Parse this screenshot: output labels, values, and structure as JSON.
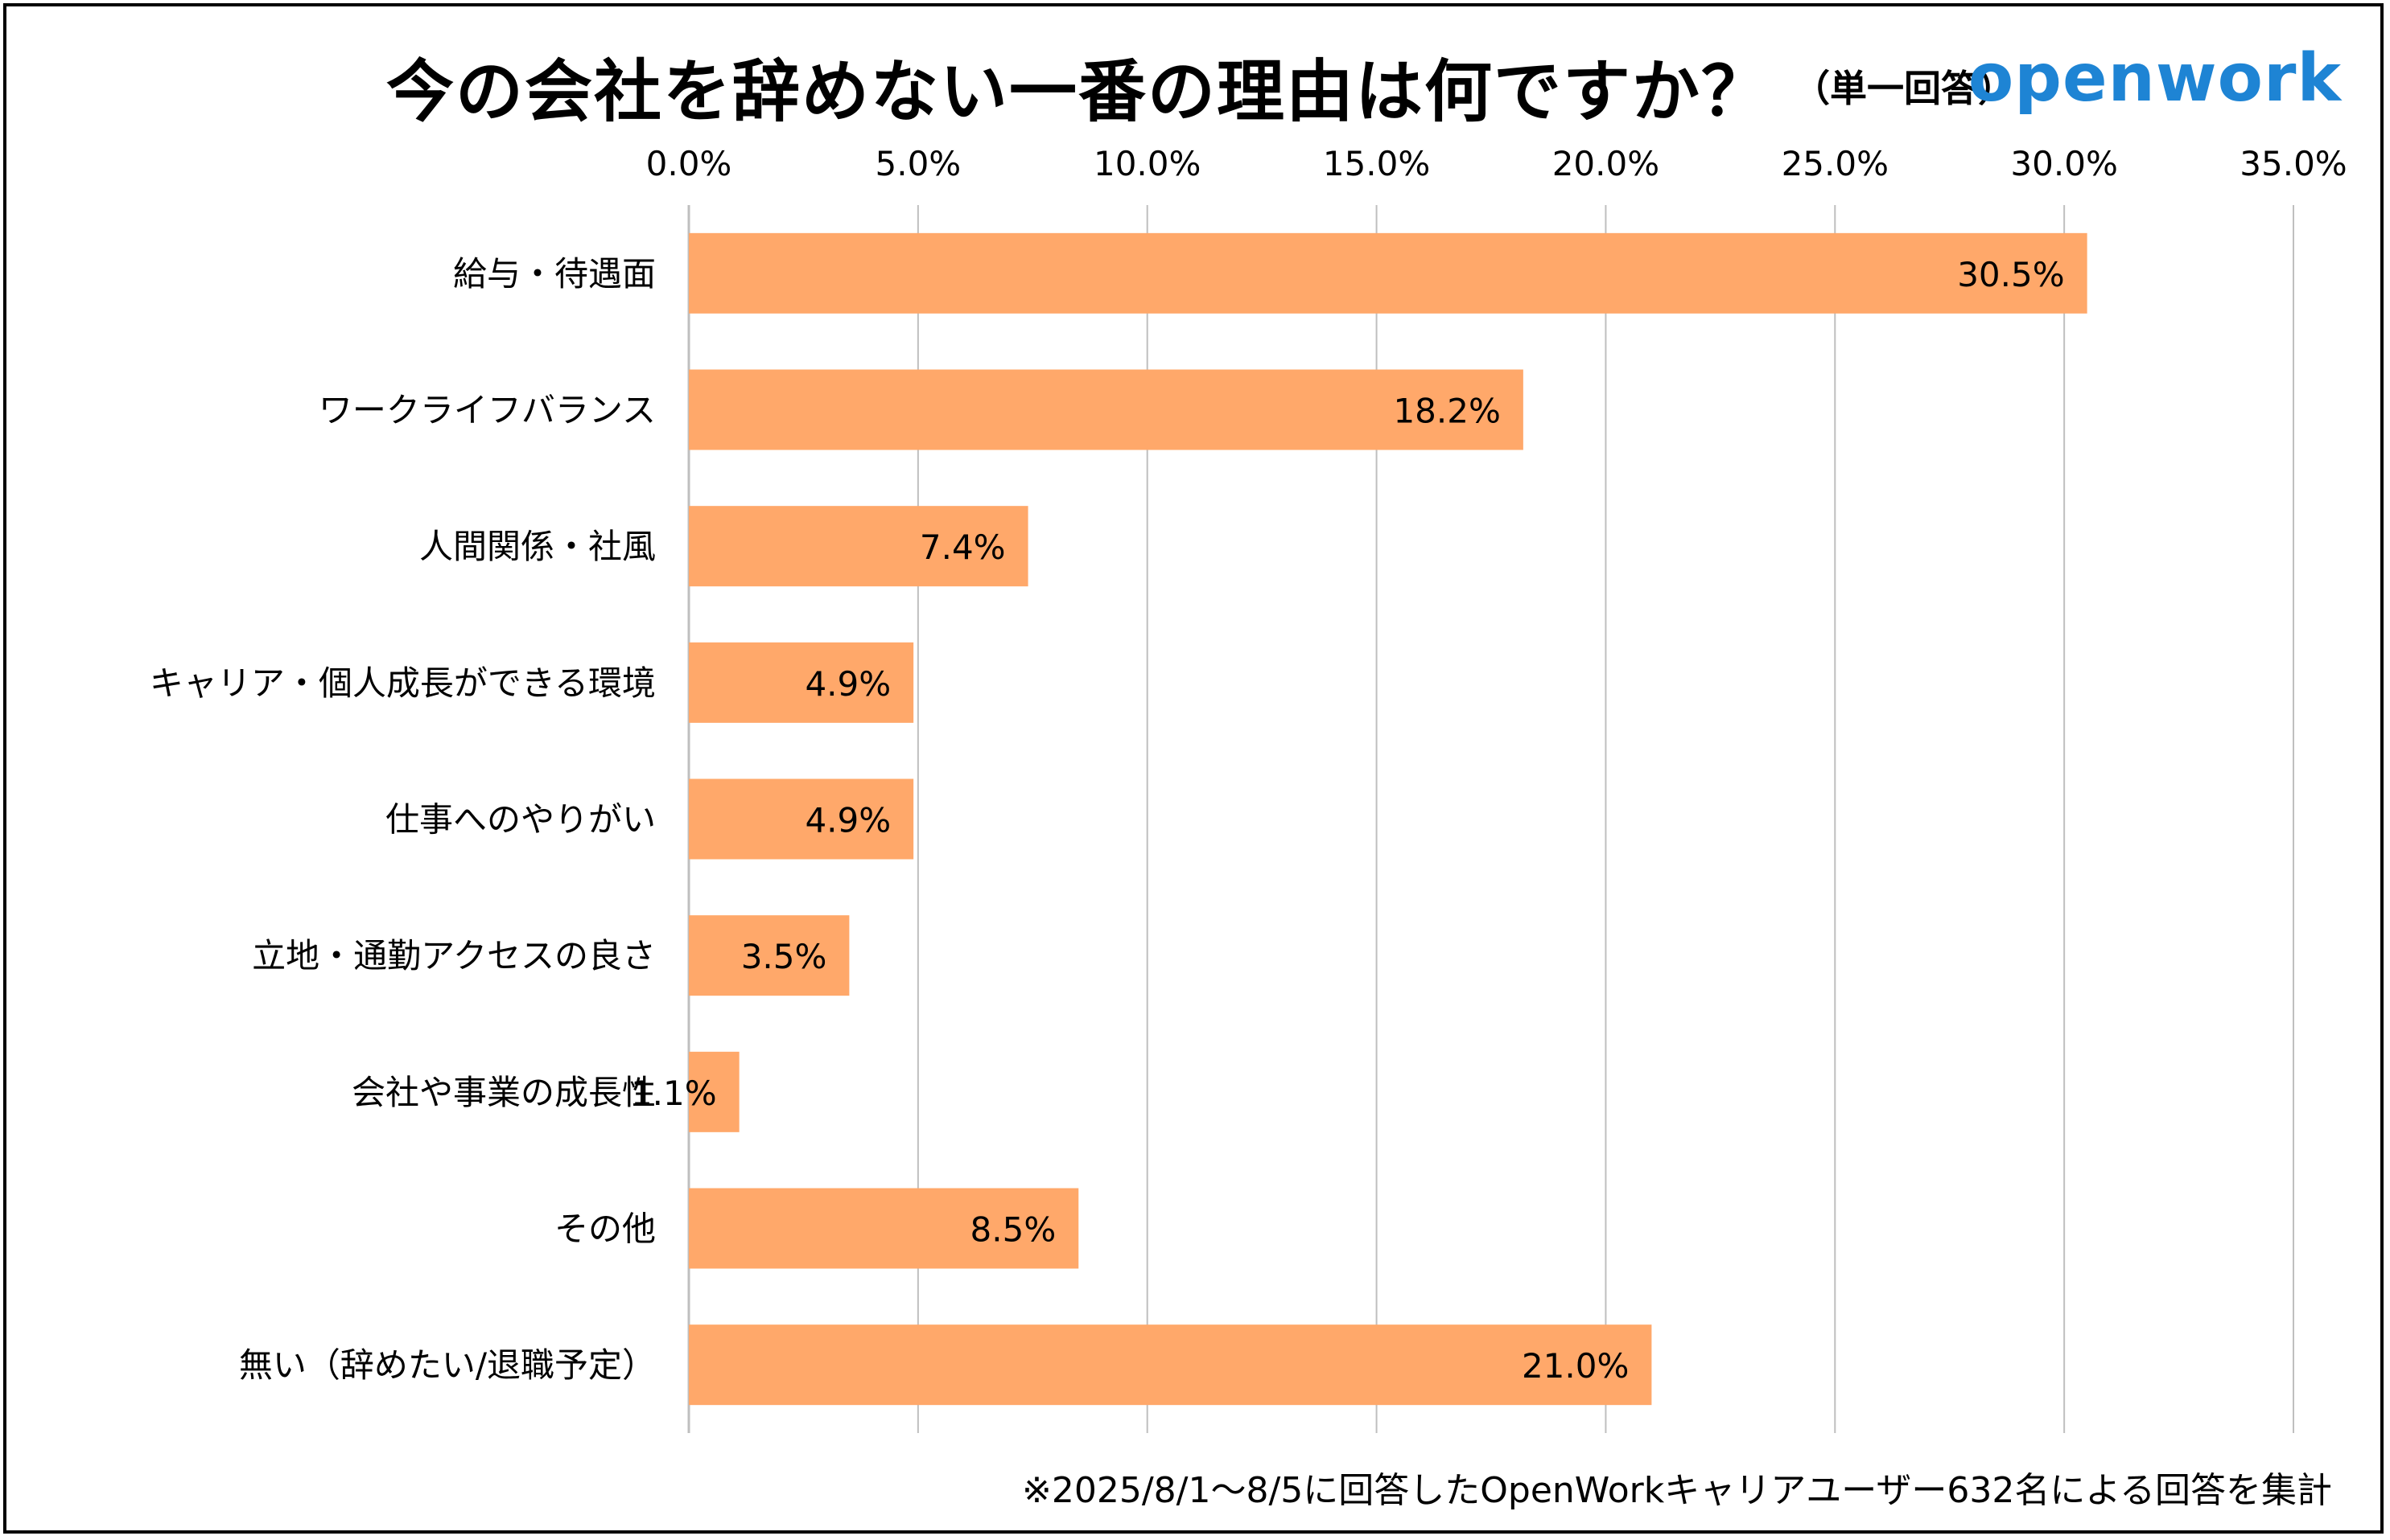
{
  "header": {
    "title": "今の会社を辞めない一番の理由は何ですか？",
    "subtitle": "（単一回答）",
    "logo_text": "openwork",
    "logo_color": "#1e84d4"
  },
  "footnote": "※2025/8/1～8/5に回答したOpenWorkキャリアユーザー632名による回答を集計",
  "chart_data": {
    "type": "bar",
    "orientation": "horizontal",
    "categories": [
      "給与・待遇面",
      "ワークライフバランス",
      "人間関係・社風",
      "キャリア・個人成長ができる環境",
      "仕事へのやりがい",
      "立地・通勤アクセスの良さ",
      "会社や事業の成長性",
      "その他",
      "無い（辞めたい/退職予定）"
    ],
    "values": [
      30.5,
      18.2,
      7.4,
      4.9,
      4.9,
      3.5,
      1.1,
      8.5,
      21.0
    ],
    "value_labels": [
      "30.5%",
      "18.2%",
      "7.4%",
      "4.9%",
      "4.9%",
      "3.5%",
      "1.1%",
      "8.5%",
      "21.0%"
    ],
    "xlim": [
      0,
      35
    ],
    "x_ticks": [
      0,
      5,
      10,
      15,
      20,
      25,
      30,
      35
    ],
    "x_tick_labels": [
      "0.0%",
      "5.0%",
      "10.0%",
      "15.0%",
      "20.0%",
      "25.0%",
      "30.0%",
      "35.0%"
    ],
    "x_axis_position": "top",
    "grid": true,
    "legend": "none",
    "bar_color": "#ffa86a",
    "grid_color": "#bfbfbf"
  }
}
